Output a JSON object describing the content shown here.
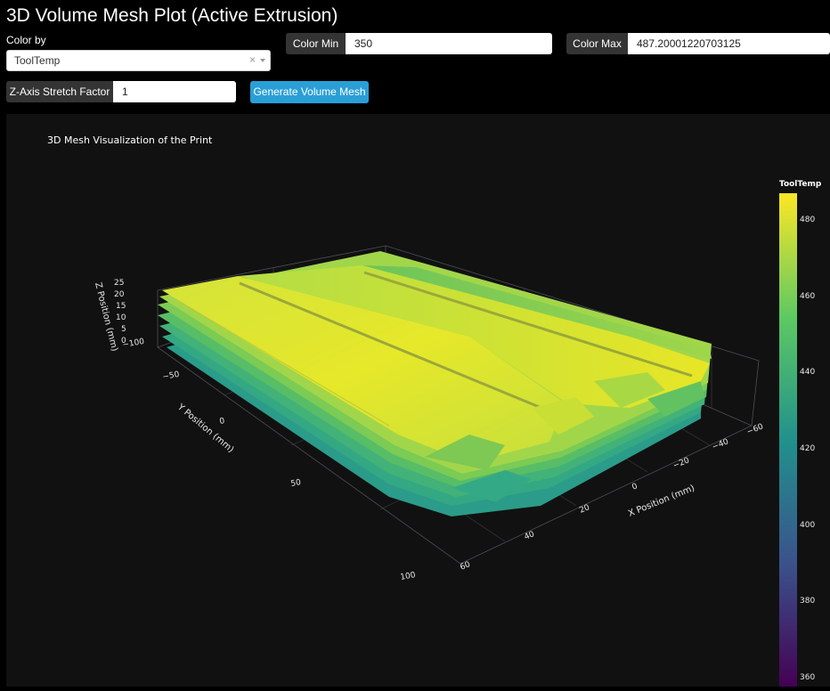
{
  "page": {
    "title": "3D Volume Mesh Plot (Active Extrusion)"
  },
  "controls": {
    "color_by_label": "Color by",
    "color_by_value": "ToolTemp",
    "clear_glyph": "×",
    "color_min_label": "Color Min",
    "color_min_value": "350",
    "color_max_label": "Color Max",
    "color_max_value": "487.20001220703125",
    "z_stretch_label": "Z-Axis Stretch Factor",
    "z_stretch_value": "1",
    "generate_label": "Generate Volume Mesh"
  },
  "chart_data": {
    "type": "mesh3d",
    "title": "3D Mesh Visualization of the Print",
    "xlabel": "X Position (mm)",
    "ylabel": "Y Position (mm)",
    "zlabel": "Z Position (mm)",
    "x_ticks": [
      "60",
      "40",
      "20",
      "0",
      "−20",
      "−40",
      "−60"
    ],
    "y_ticks": [
      "100",
      "50",
      "0",
      "−50",
      "−100"
    ],
    "z_ticks": [
      "25",
      "20",
      "15",
      "10",
      "5",
      "0"
    ],
    "colorbar": {
      "title": "ToolTemp",
      "ticks": [
        "480",
        "460",
        "440",
        "420",
        "400",
        "380",
        "360"
      ],
      "range": [
        350,
        487.2
      ],
      "colorscale": [
        "#440154",
        "#3b528b",
        "#21918c",
        "#5ec962",
        "#fde725"
      ]
    }
  }
}
